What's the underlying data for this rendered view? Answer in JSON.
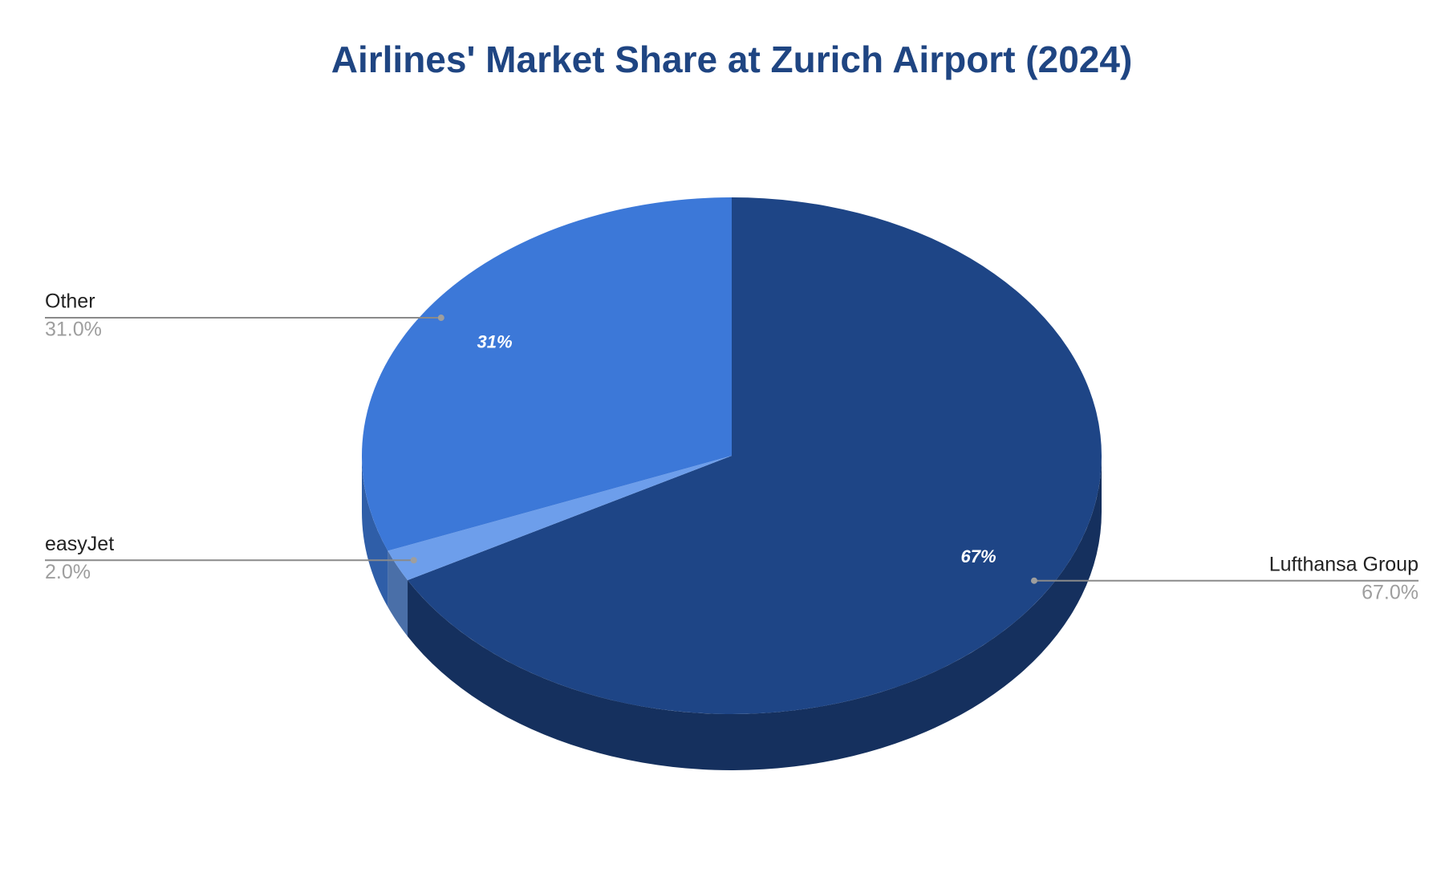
{
  "chart_data": {
    "type": "pie",
    "title": "Airlines' Market Share at Zurich Airport (2024)",
    "categories": [
      "Lufthansa Group",
      "easyJet",
      "Other"
    ],
    "values": [
      67,
      2,
      31
    ],
    "value_labels": [
      "67.0%",
      "2.0%",
      "31.0%"
    ],
    "slice_labels": [
      "67%",
      null,
      "31%"
    ],
    "colors": [
      "#1e4586",
      "#6d9eeb",
      "#3c78d8"
    ],
    "side_colors": [
      "#15305e",
      "#4a6fa8",
      "#2f5ea8"
    ],
    "label_sides": [
      "right",
      "left",
      "left"
    ]
  }
}
